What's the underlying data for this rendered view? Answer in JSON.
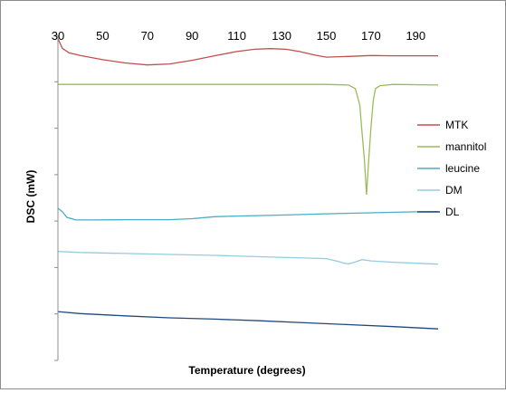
{
  "chart_data": {
    "type": "line",
    "title": "",
    "xlabel": "Temperature (degrees)",
    "ylabel": "DSC (mW)",
    "xlim": [
      30,
      200
    ],
    "ylim": [
      0,
      100
    ],
    "x_ticks": [
      30,
      50,
      70,
      90,
      110,
      130,
      150,
      170,
      190
    ],
    "y_ticks_labelled": false,
    "grid": false,
    "legend_position": "right",
    "series": [
      {
        "name": "MTK",
        "color": "#C0504D",
        "points": [
          [
            30,
            99.0
          ],
          [
            32,
            96.0
          ],
          [
            35,
            94.6
          ],
          [
            40,
            93.8
          ],
          [
            50,
            92.5
          ],
          [
            60,
            91.5
          ],
          [
            70,
            90.9
          ],
          [
            80,
            91.2
          ],
          [
            90,
            92.3
          ],
          [
            100,
            93.7
          ],
          [
            110,
            95.0
          ],
          [
            118,
            95.7
          ],
          [
            125,
            95.9
          ],
          [
            132,
            95.7
          ],
          [
            138,
            95.0
          ],
          [
            145,
            93.9
          ],
          [
            150,
            93.3
          ],
          [
            160,
            93.5
          ],
          [
            170,
            93.8
          ],
          [
            180,
            93.7
          ],
          [
            200,
            93.7
          ]
        ]
      },
      {
        "name": "mannitol",
        "color": "#9BBB59",
        "points": [
          [
            30,
            84.9
          ],
          [
            100,
            84.9
          ],
          [
            150,
            84.9
          ],
          [
            160,
            84.7
          ],
          [
            163,
            83.6
          ],
          [
            165,
            78.5
          ],
          [
            166,
            70.0
          ],
          [
            167,
            62.0
          ],
          [
            168,
            51.0
          ],
          [
            169,
            62.0
          ],
          [
            170,
            72.0
          ],
          [
            171,
            80.0
          ],
          [
            172,
            83.6
          ],
          [
            174,
            84.5
          ],
          [
            180,
            84.9
          ],
          [
            200,
            84.7
          ]
        ]
      },
      {
        "name": "leucine",
        "color": "#4BACC6",
        "points": [
          [
            30,
            46.8
          ],
          [
            32,
            45.7
          ],
          [
            34,
            44.0
          ],
          [
            38,
            43.2
          ],
          [
            45,
            43.2
          ],
          [
            60,
            43.3
          ],
          [
            80,
            43.3
          ],
          [
            90,
            43.6
          ],
          [
            100,
            44.2
          ],
          [
            110,
            44.4
          ],
          [
            130,
            44.7
          ],
          [
            150,
            45.1
          ],
          [
            170,
            45.4
          ],
          [
            190,
            45.7
          ],
          [
            200,
            45.8
          ]
        ]
      },
      {
        "name": "DM",
        "color": "#93CDDD",
        "points": [
          [
            30,
            33.5
          ],
          [
            40,
            33.2
          ],
          [
            60,
            32.9
          ],
          [
            80,
            32.6
          ],
          [
            100,
            32.3
          ],
          [
            120,
            31.9
          ],
          [
            140,
            31.5
          ],
          [
            150,
            31.3
          ],
          [
            155,
            30.5
          ],
          [
            158,
            29.9
          ],
          [
            160,
            29.7
          ],
          [
            163,
            30.3
          ],
          [
            166,
            31.0
          ],
          [
            170,
            30.6
          ],
          [
            180,
            30.2
          ],
          [
            190,
            29.9
          ],
          [
            200,
            29.6
          ]
        ]
      },
      {
        "name": "DL",
        "color": "#1F497D",
        "points": [
          [
            30,
            15.0
          ],
          [
            40,
            14.4
          ],
          [
            60,
            13.7
          ],
          [
            80,
            13.1
          ],
          [
            100,
            12.7
          ],
          [
            120,
            12.2
          ],
          [
            140,
            11.6
          ],
          [
            160,
            11.0
          ],
          [
            180,
            10.4
          ],
          [
            200,
            9.7
          ]
        ]
      }
    ]
  }
}
